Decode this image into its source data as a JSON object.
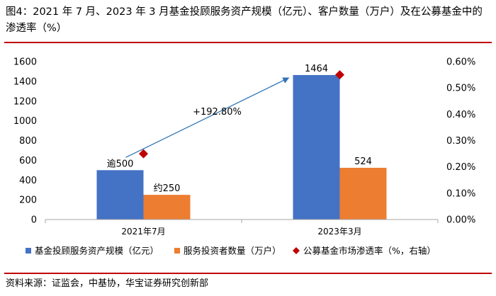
{
  "figure": {
    "title": "图4：2021 年 7 月、2023 年 3 月基金投顾服务资产规模（亿元）、客户数量（万户）及在公募基金中的渗透率（%）",
    "source": "资料来源：证监会，中基协，华宝证券研究创新部"
  },
  "chart_data": {
    "type": "bar",
    "categories": [
      "2021年7月",
      "2023年3月"
    ],
    "series": [
      {
        "name": "基金投顾服务资产规模（亿元）",
        "values": [
          500,
          1464
        ],
        "data_labels": [
          "逾500",
          "1464"
        ],
        "color": "#4472c4",
        "axis": "left"
      },
      {
        "name": "服务投资者数量（万户）",
        "values": [
          250,
          524
        ],
        "data_labels": [
          "约250",
          "524"
        ],
        "color": "#ed7d31",
        "axis": "left"
      },
      {
        "name": "公募基金市场渗透率（%，右轴）",
        "type": "scatter",
        "values": [
          0.25,
          0.55
        ],
        "color": "#c00000",
        "axis": "right"
      }
    ],
    "y_left": {
      "min": 0,
      "max": 1600,
      "step": 200,
      "ticks": [
        "0",
        "200",
        "400",
        "600",
        "800",
        "1000",
        "1200",
        "1400",
        "1600"
      ]
    },
    "y_right": {
      "min": 0,
      "max": 0.6,
      "ticks": [
        "0.00%",
        "0.10%",
        "0.20%",
        "0.30%",
        "0.40%",
        "0.50%",
        "0.60%"
      ]
    },
    "annotation": {
      "text": "+192.80%",
      "from_value": 500,
      "to_value": 1464
    },
    "legend_position": "bottom"
  }
}
